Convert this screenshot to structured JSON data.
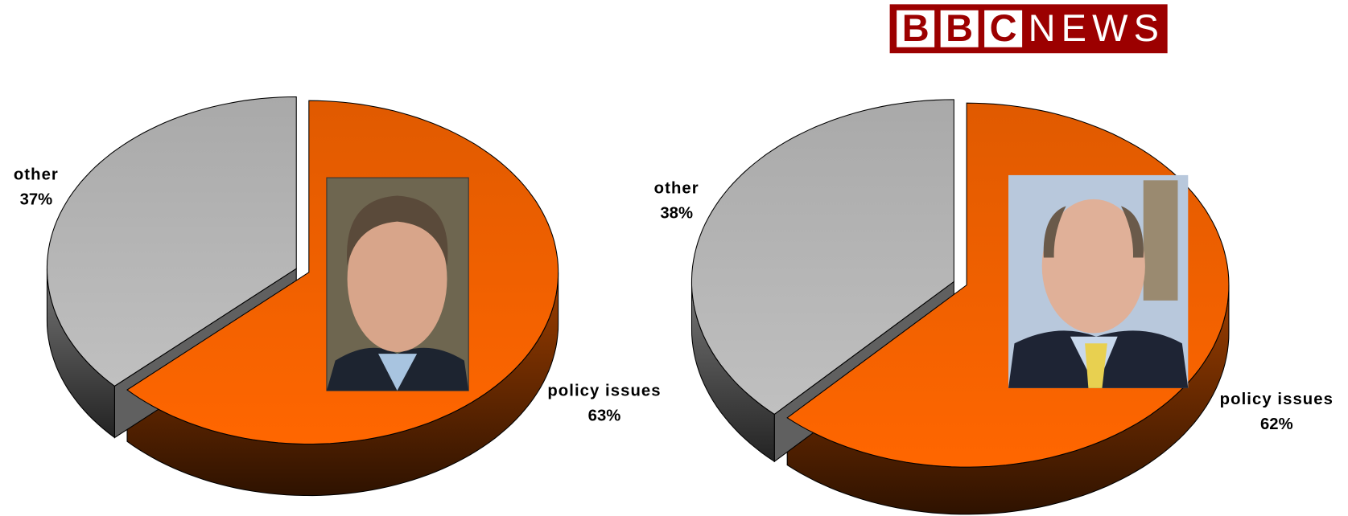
{
  "logo": {
    "letters": [
      "B",
      "B",
      "C"
    ],
    "word": "NEWS"
  },
  "chart_data": [
    {
      "type": "pie",
      "categories": [
        "policy issues",
        "other"
      ],
      "values": [
        63,
        37
      ],
      "value_labels": [
        "63%",
        "37%"
      ],
      "colors": [
        "#ff6600",
        "#c0c0c0"
      ]
    },
    {
      "type": "pie",
      "categories": [
        "policy issues",
        "other"
      ],
      "values": [
        62,
        38
      ],
      "value_labels": [
        "62%",
        "38%"
      ],
      "colors": [
        "#ff6600",
        "#c0c0c0"
      ]
    }
  ]
}
